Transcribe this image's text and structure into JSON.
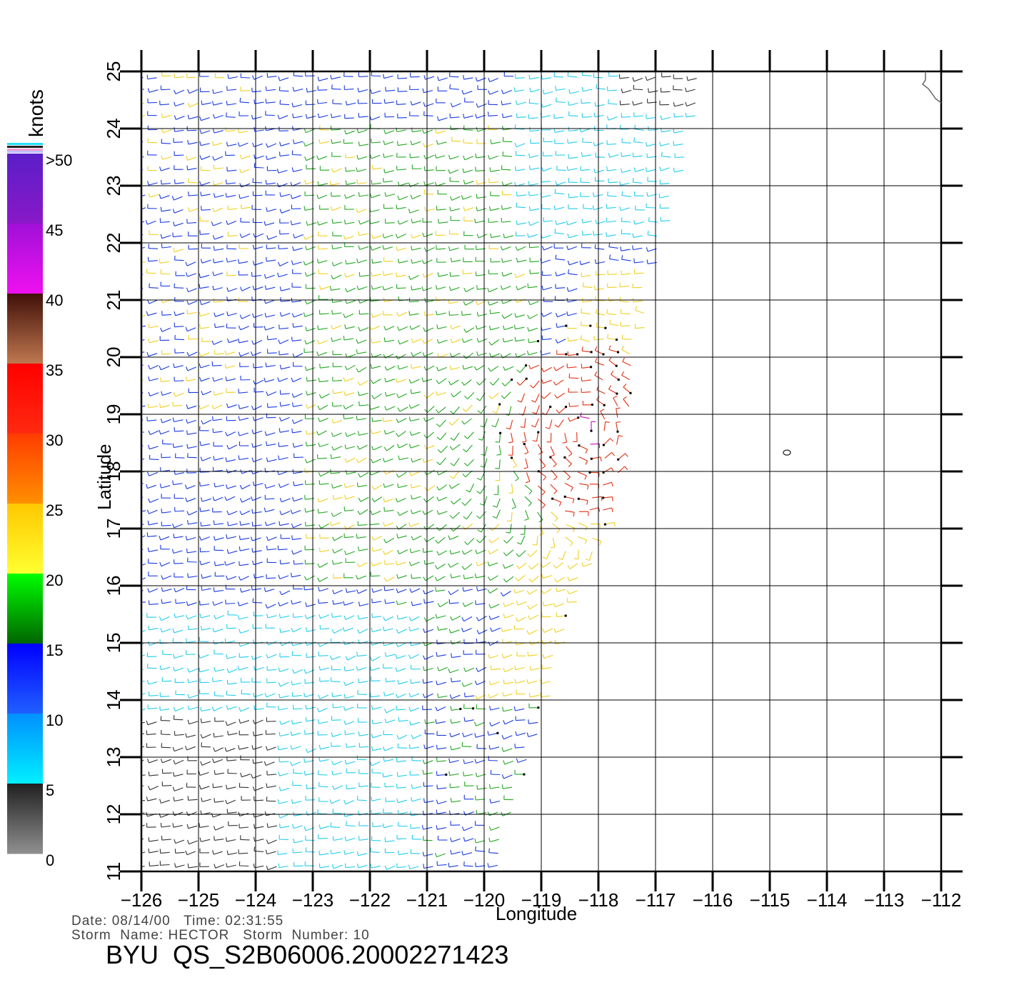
{
  "colorbar": {
    "unit": "knots",
    "labels": [
      ">50",
      "45",
      "40",
      "35",
      "30",
      "25",
      "20",
      "15",
      "10",
      "5",
      "0"
    ],
    "bands": [
      {
        "range": "45-50",
        "top": "#5a1fc8",
        "bottom": "#8a18c8"
      },
      {
        "range": "40-45",
        "top": "#a010d8",
        "bottom": "#f010f0"
      },
      {
        "range": "35-40",
        "top": "#401008",
        "bottom": "#c07850"
      },
      {
        "range": "30-35",
        "top": "#ff0000",
        "bottom": "#ff2a10"
      },
      {
        "range": "25-30",
        "top": "#ff3c00",
        "bottom": "#ff9000"
      },
      {
        "range": "20-25",
        "top": "#ffc800",
        "bottom": "#ffff30"
      },
      {
        "range": "15-20",
        "top": "#00ff00",
        "bottom": "#006400"
      },
      {
        "range": "10-15",
        "top": "#0000ff",
        "bottom": "#2060ff"
      },
      {
        "range": "5-10",
        "top": "#0090ff",
        "bottom": "#00f0ff"
      },
      {
        "range": "0-5",
        "top": "#202020",
        "bottom": "#909090"
      }
    ]
  },
  "axes": {
    "xlabel": "Longitude",
    "ylabel": "Latitude",
    "lon_ticks": [
      "-126",
      "-125",
      "-124",
      "-123",
      "-122",
      "-121",
      "-120",
      "-119",
      "-118",
      "-117",
      "-116",
      "-115",
      "-114",
      "-113",
      "-112"
    ],
    "lat_ticks": [
      "11",
      "12",
      "13",
      "14",
      "15",
      "16",
      "17",
      "18",
      "19",
      "20",
      "21",
      "22",
      "23",
      "24",
      "25"
    ],
    "lon_range": [
      -126,
      -112
    ],
    "lat_range": [
      11,
      25
    ]
  },
  "swath_east_edge": [
    [
      -117.1,
      21.1
    ],
    [
      -116.2,
      24.3
    ],
    [
      -116.1,
      25.0
    ]
  ],
  "swath_south_east_edge": [
    [
      -119.7,
      11.2
    ],
    [
      -117.6,
      18.0
    ],
    [
      -117.1,
      21.1
    ]
  ],
  "storm_center": {
    "lon": -118.2,
    "lat": 18.7
  },
  "info": {
    "date_label": "Date:",
    "date": "08/14/00",
    "time_label": "Time:",
    "time": "02:31:55",
    "storm_name_label": "Storm  Name:",
    "storm_name": "HECTOR",
    "storm_number_label": "Storm  Number:",
    "storm_number": "10",
    "product": "BYU  QS_S2B06006.20002271423"
  },
  "colors": {
    "calm": "#333333",
    "light": "#22ccee",
    "moderate": "#1a3ae0",
    "fresh": "#22a822",
    "strong": "#f0d020",
    "gale": "#e03010",
    "storm": "#c010c0",
    "flagged": "#000000"
  }
}
